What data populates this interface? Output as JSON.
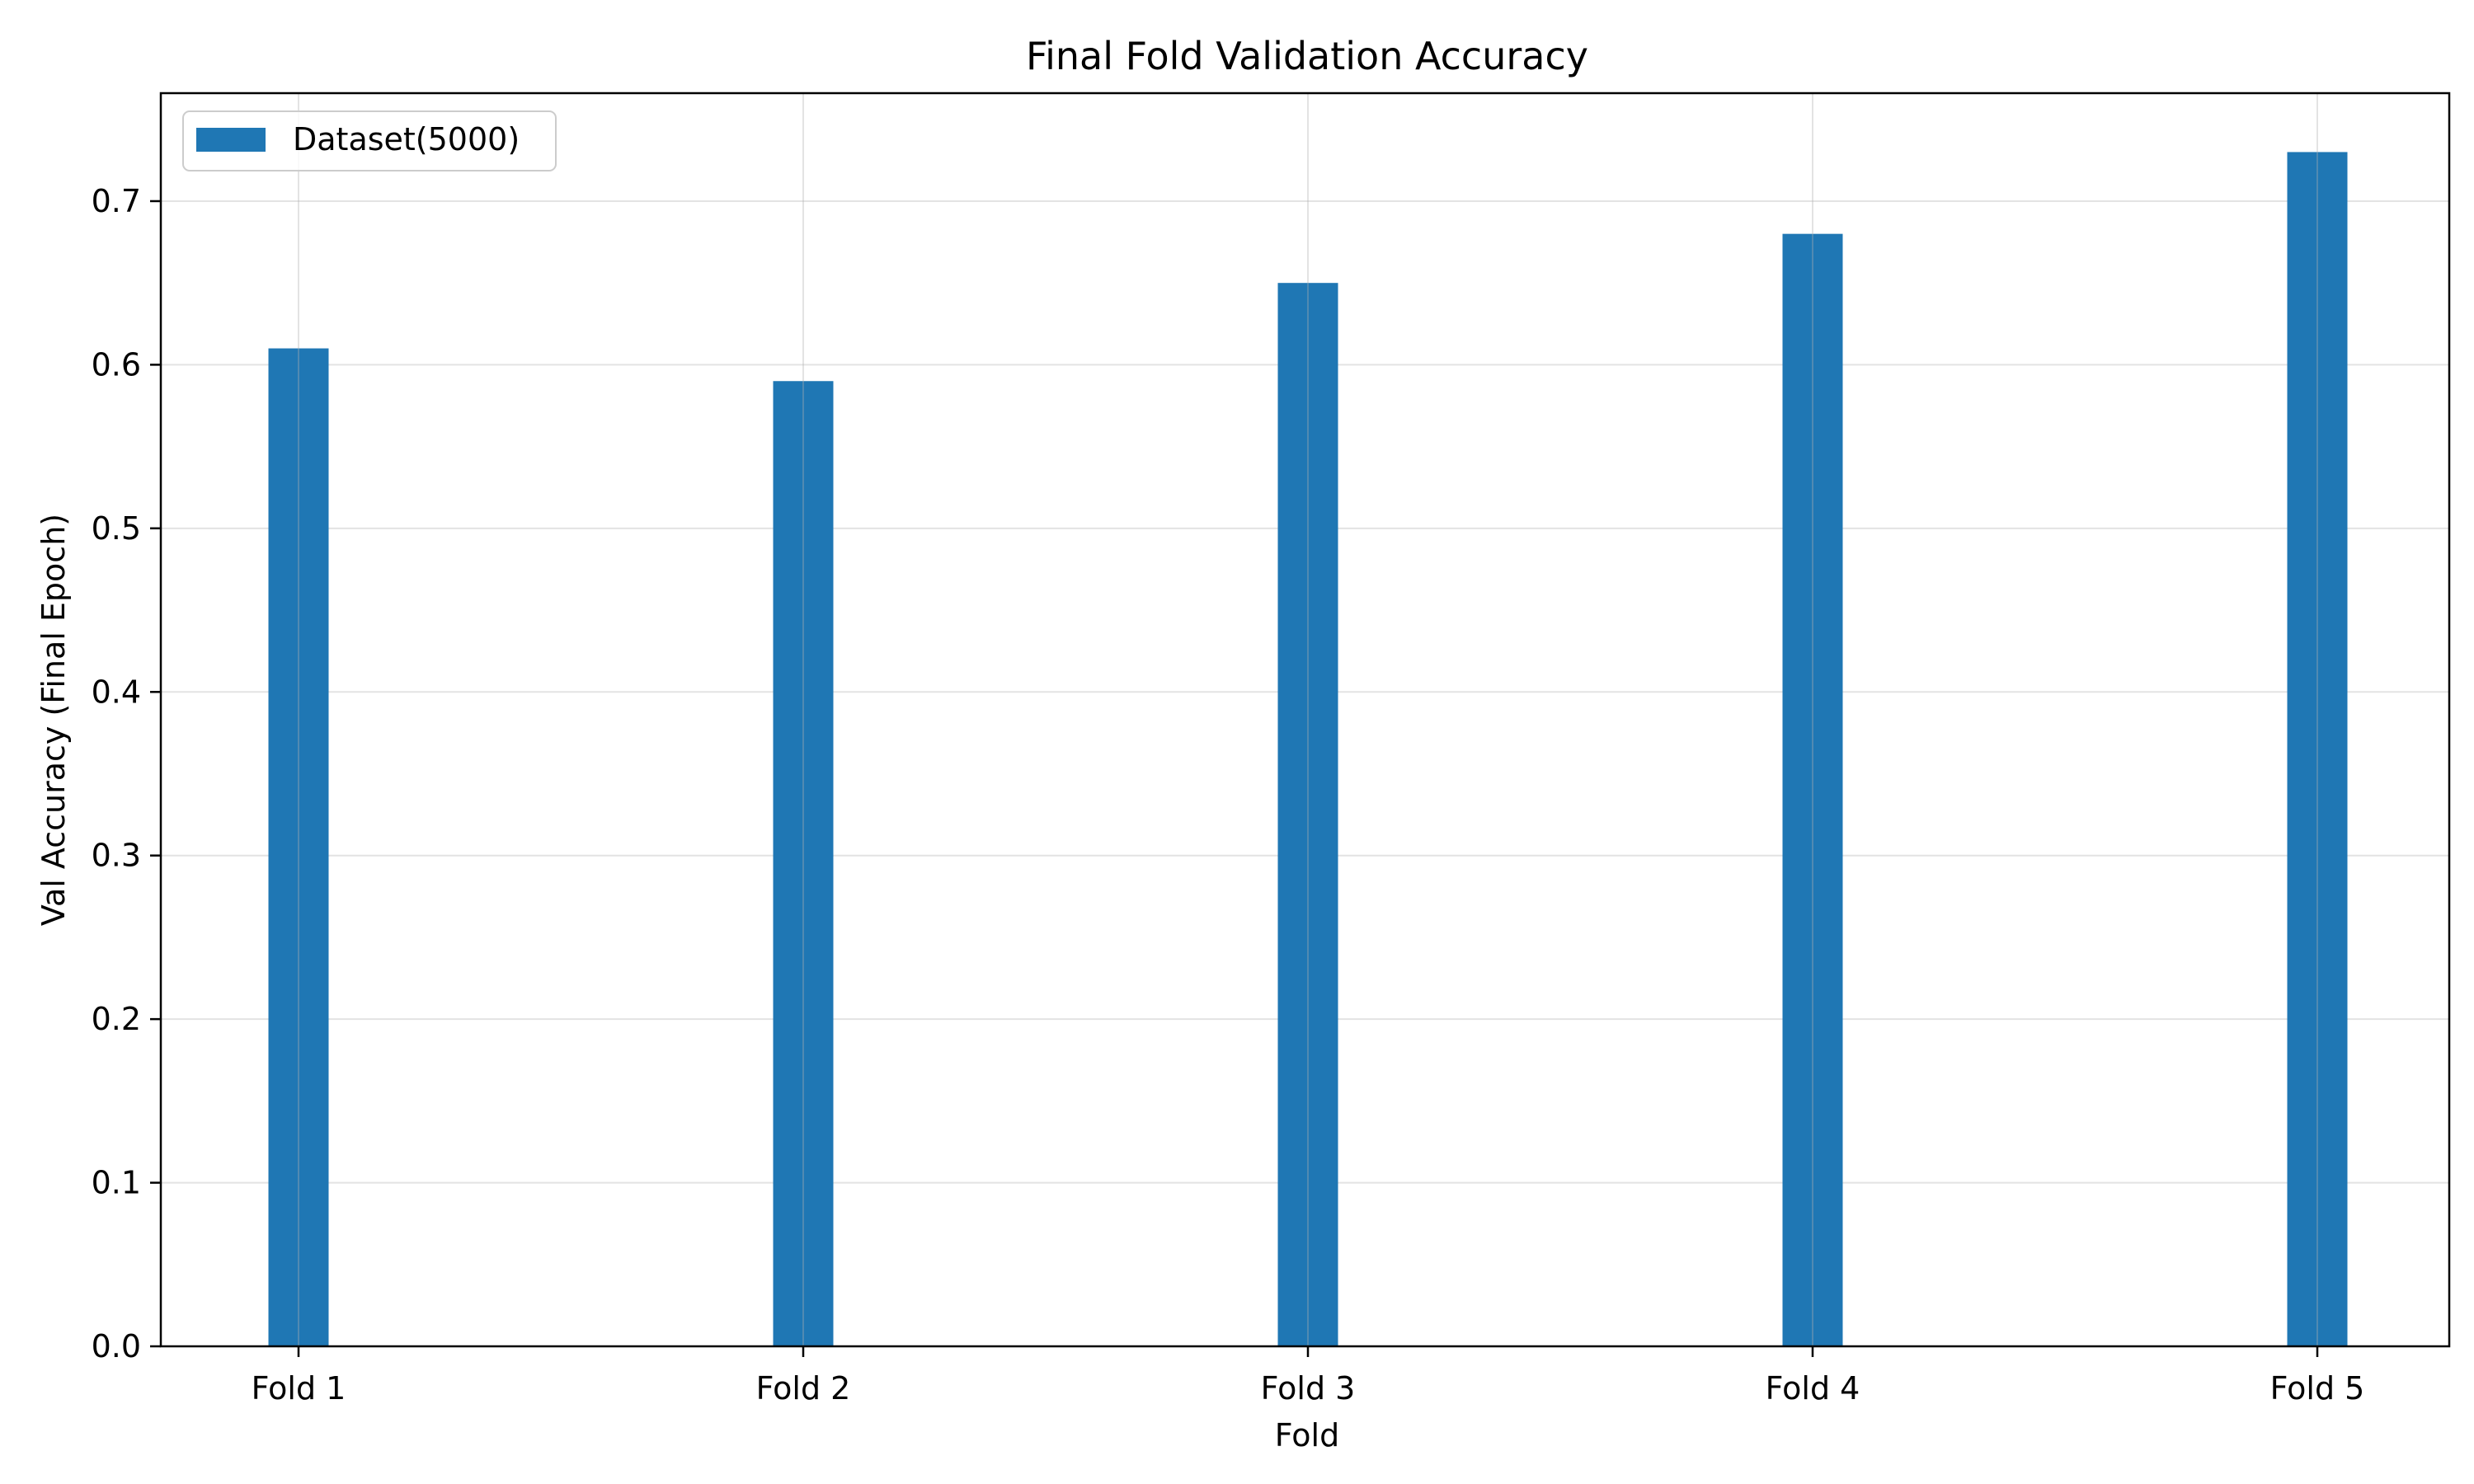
{
  "chart_data": {
    "type": "bar",
    "title": "Final Fold Validation Accuracy",
    "xlabel": "Fold",
    "ylabel": "Val Accuracy (Final Epoch)",
    "categories": [
      "Fold 1",
      "Fold 2",
      "Fold 3",
      "Fold 4",
      "Fold 5"
    ],
    "series": [
      {
        "name": "Dataset(5000)",
        "values": [
          0.61,
          0.59,
          0.65,
          0.68,
          0.73
        ],
        "color": "#1f77b4"
      }
    ],
    "ylim": [
      0,
      0.766
    ],
    "yticks": [
      0.0,
      0.1,
      0.2,
      0.3,
      0.4,
      0.5,
      0.6,
      0.7
    ],
    "ytick_labels": [
      "0.0",
      "0.1",
      "0.2",
      "0.3",
      "0.4",
      "0.5",
      "0.6",
      "0.7"
    ],
    "grid": true,
    "legend_position": "top-left"
  }
}
